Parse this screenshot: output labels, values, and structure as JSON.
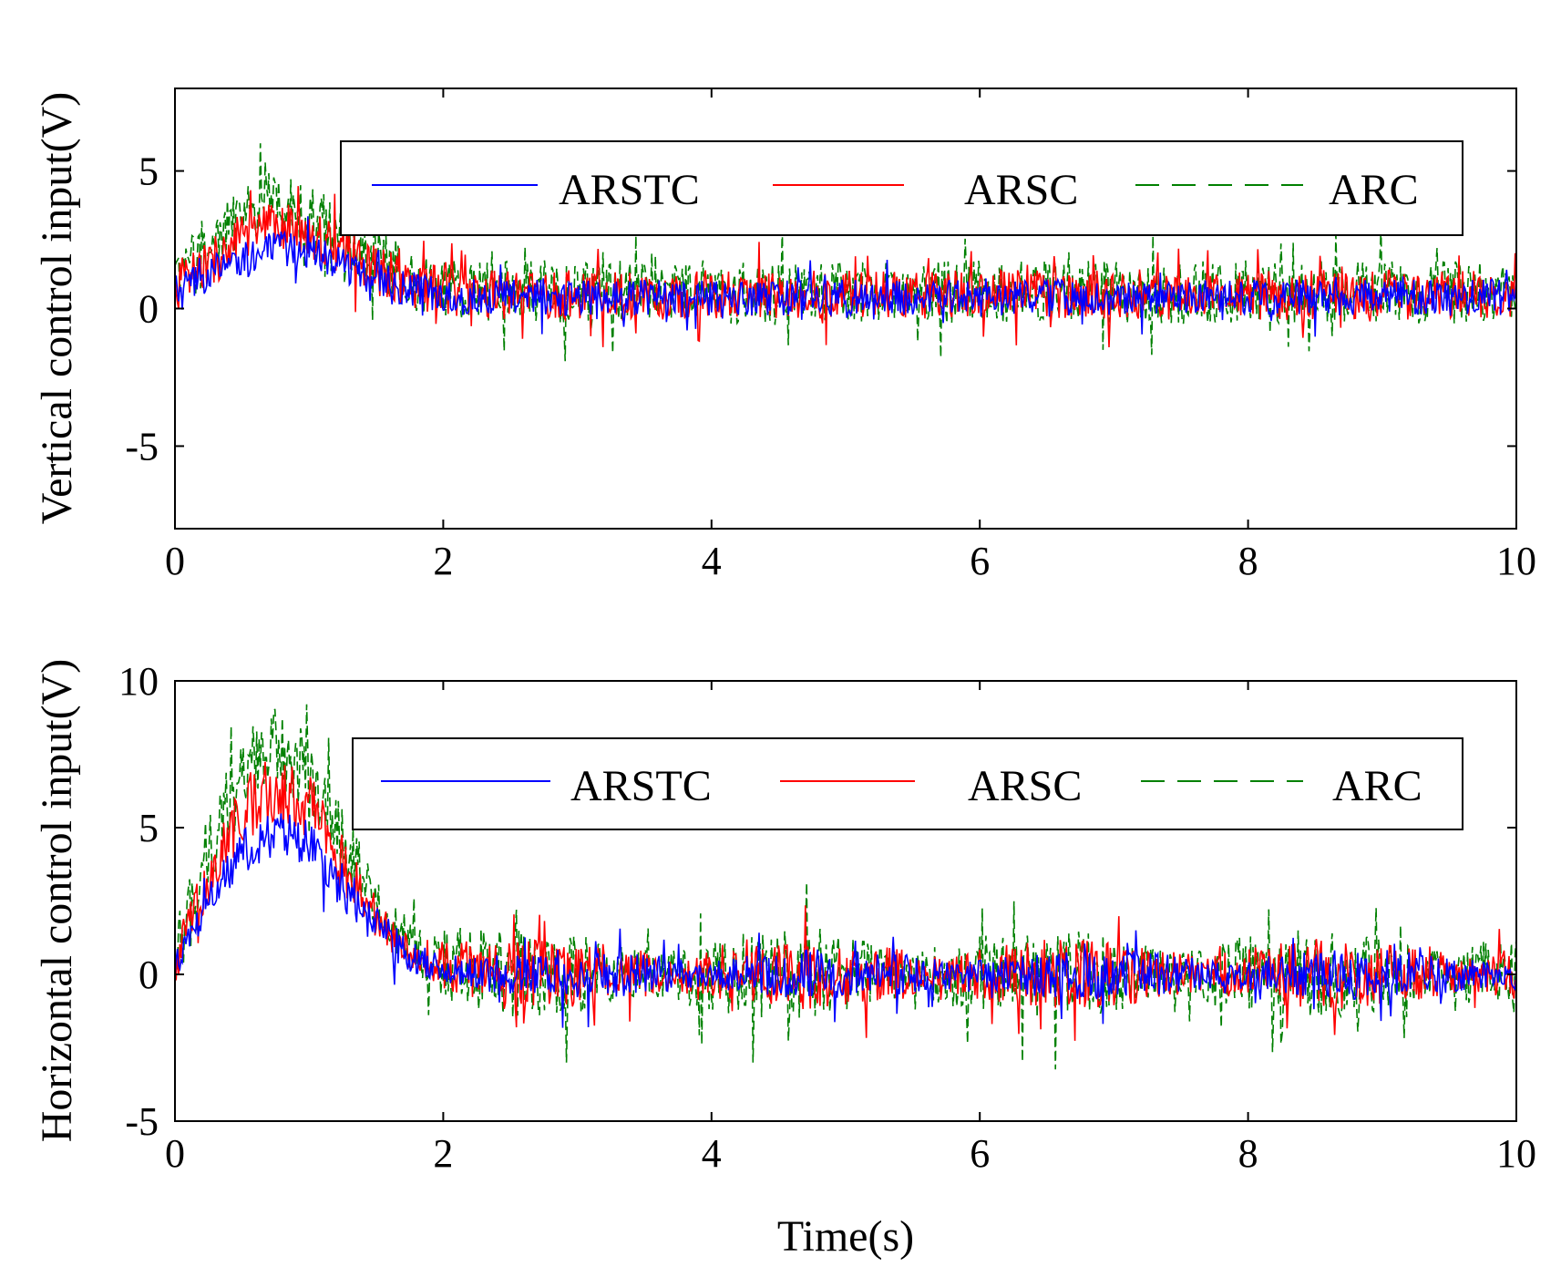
{
  "chart_data": [
    {
      "type": "line",
      "title": "",
      "xlabel": "",
      "ylabel": "Vertical control input(V)",
      "xlim": [
        0,
        10
      ],
      "ylim": [
        -8,
        8
      ],
      "xticks": [
        0,
        2,
        4,
        6,
        8,
        10
      ],
      "xtick_labels": [
        "0",
        "2",
        "4",
        "6",
        "8",
        "10"
      ],
      "yticks": [
        -5,
        0,
        5
      ],
      "ytick_labels": [
        "-5",
        "0",
        "5"
      ],
      "legend": {
        "placement": "top-right",
        "entries": [
          "ARSTC",
          "ARSC",
          "ARC"
        ]
      },
      "series": [
        {
          "name": "ARSTC",
          "color": "#0000ff",
          "dash": "solid",
          "x": [
            0,
            0.25,
            0.5,
            0.75,
            1.0,
            1.25,
            1.5,
            1.75,
            2.0,
            2.5,
            3.0,
            3.5,
            4.0,
            4.5,
            5.0,
            5.5,
            6.0,
            6.5,
            7.0,
            7.5,
            8.0,
            8.5,
            9.0,
            9.5,
            10.0
          ],
          "y": [
            0.6,
            1.2,
            1.8,
            2.2,
            2.1,
            1.6,
            1.1,
            0.7,
            0.5,
            0.4,
            0.4,
            0.4,
            0.4,
            0.4,
            0.4,
            0.4,
            0.4,
            0.4,
            0.4,
            0.4,
            0.4,
            0.4,
            0.4,
            0.4,
            0.4
          ]
        },
        {
          "name": "ARSC",
          "color": "#ff0000",
          "dash": "solid",
          "x": [
            0,
            0.25,
            0.5,
            0.75,
            1.0,
            1.25,
            1.5,
            1.75,
            2.0,
            2.5,
            3.0,
            3.5,
            4.0,
            4.5,
            5.0,
            5.5,
            6.0,
            6.5,
            7.0,
            7.5,
            8.0,
            8.5,
            9.0,
            9.5,
            10.0
          ],
          "y": [
            0.8,
            1.6,
            2.6,
            3.0,
            2.7,
            2.1,
            1.4,
            0.9,
            0.6,
            0.5,
            0.5,
            0.5,
            0.5,
            0.5,
            0.5,
            0.5,
            0.5,
            0.5,
            0.5,
            0.5,
            0.5,
            0.5,
            0.5,
            0.5,
            0.5
          ]
        },
        {
          "name": "ARC",
          "color": "#008000",
          "dash": "dashed",
          "x": [
            0,
            0.25,
            0.5,
            0.75,
            1.0,
            1.25,
            1.5,
            1.75,
            2.0,
            2.5,
            3.0,
            3.5,
            4.0,
            4.5,
            5.0,
            5.5,
            6.0,
            6.5,
            7.0,
            7.5,
            8.0,
            8.5,
            9.0,
            9.5,
            10.0
          ],
          "y": [
            1.0,
            2.1,
            3.4,
            3.9,
            3.5,
            2.6,
            1.8,
            1.1,
            0.7,
            0.6,
            0.6,
            0.6,
            0.6,
            0.6,
            0.6,
            0.6,
            0.6,
            0.6,
            0.6,
            0.6,
            0.6,
            0.6,
            0.6,
            0.6,
            0.6
          ]
        }
      ]
    },
    {
      "type": "line",
      "title": "",
      "xlabel": "Time(s)",
      "ylabel": "Horizontal control input(V)",
      "xlim": [
        0,
        10
      ],
      "ylim": [
        -5,
        10
      ],
      "xticks": [
        0,
        2,
        4,
        6,
        8,
        10
      ],
      "xtick_labels": [
        "0",
        "2",
        "4",
        "6",
        "8",
        "10"
      ],
      "yticks": [
        -5,
        0,
        5,
        10
      ],
      "ytick_labels": [
        "-5",
        "0",
        "5",
        "10"
      ],
      "legend": {
        "placement": "top-right",
        "entries": [
          "ARSTC",
          "ARSC",
          "ARC"
        ]
      },
      "series": [
        {
          "name": "ARSTC",
          "color": "#0000ff",
          "dash": "solid",
          "x": [
            0,
            0.25,
            0.5,
            0.75,
            1.0,
            1.25,
            1.5,
            1.75,
            2.0,
            2.5,
            3.0,
            3.5,
            4.0,
            4.5,
            5.0,
            5.5,
            6.0,
            6.5,
            7.0,
            7.5,
            8.0,
            8.5,
            9.0,
            9.5,
            10.0
          ],
          "y": [
            0.3,
            2.5,
            4.2,
            4.8,
            4.4,
            3.0,
            1.6,
            0.6,
            0.2,
            0,
            0,
            0,
            0,
            0,
            0,
            0,
            0,
            0,
            0,
            0,
            0,
            0,
            0,
            0,
            0
          ]
        },
        {
          "name": "ARSC",
          "color": "#ff0000",
          "dash": "solid",
          "x": [
            0,
            0.25,
            0.5,
            0.75,
            1.0,
            1.25,
            1.5,
            1.75,
            2.0,
            2.5,
            3.0,
            3.5,
            4.0,
            4.5,
            5.0,
            5.5,
            6.0,
            6.5,
            7.0,
            7.5,
            8.0,
            8.5,
            9.0,
            9.5,
            10.0
          ],
          "y": [
            0.4,
            3.3,
            5.6,
            6.3,
            5.7,
            3.8,
            2.0,
            0.8,
            0.3,
            0,
            0,
            0,
            0,
            0,
            0,
            0,
            0,
            0,
            0,
            0,
            0,
            0,
            0,
            0,
            0
          ]
        },
        {
          "name": "ARC",
          "color": "#008000",
          "dash": "dashed",
          "x": [
            0,
            0.25,
            0.5,
            0.75,
            1.0,
            1.25,
            1.5,
            1.75,
            2.0,
            2.5,
            3.0,
            3.5,
            4.0,
            4.5,
            5.0,
            5.5,
            6.0,
            6.5,
            7.0,
            7.5,
            8.0,
            8.5,
            9.0,
            9.5,
            10.0
          ],
          "y": [
            0.5,
            4.0,
            6.8,
            7.6,
            6.9,
            4.6,
            2.4,
            1.0,
            0.4,
            0,
            0,
            0,
            0,
            0,
            0,
            0,
            0,
            0,
            0,
            0,
            0,
            0,
            0,
            0,
            0
          ]
        }
      ]
    }
  ]
}
